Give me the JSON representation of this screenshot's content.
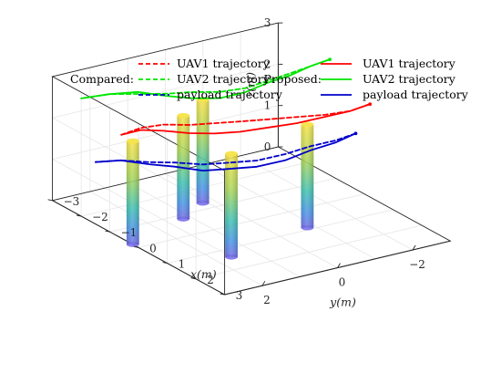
{
  "chart_data": {
    "type": "line3d",
    "axes": {
      "xlabel": "x(m)",
      "ylabel": "y(m)",
      "zlabel": "z(m)",
      "xlim": [
        -3,
        3
      ],
      "ylim": [
        -3,
        3
      ],
      "zlim": [
        0,
        3
      ],
      "xticks": [
        -3,
        -2,
        -1,
        0,
        1,
        2,
        3
      ],
      "yticks": [
        -2,
        0,
        2
      ],
      "zticks": [
        0,
        1,
        2,
        3
      ],
      "grid": true
    },
    "legend": {
      "placement": "top",
      "groups": [
        {
          "label": "Compared:",
          "entries": [
            "UAV1 trajectory",
            "UAV2 trajectory",
            "payload trajectory"
          ],
          "style": "dashed"
        },
        {
          "label": "Proposed:",
          "entries": [
            "UAV1 trajectory",
            "UAV2 trajectory",
            "payload trajectory"
          ],
          "style": "solid"
        }
      ]
    },
    "colors": {
      "UAV1": "#ff0000",
      "UAV2": "#00e600",
      "payload": "#0000cc"
    },
    "obstacles": [
      {
        "x": -1.3,
        "y": 0.3,
        "radius": 0.15,
        "height": 2.5
      },
      {
        "x": -0.8,
        "y": 1.2,
        "radius": 0.15,
        "height": 2.5
      },
      {
        "x": 0.9,
        "y": -0.8,
        "radius": 0.15,
        "height": 2.5
      },
      {
        "x": -0.2,
        "y": 3.0,
        "radius": 0.15,
        "height": 2.5
      },
      {
        "x": 1.4,
        "y": 1.6,
        "radius": 0.15,
        "height": 2.5
      }
    ],
    "series": [
      {
        "name": "UAV1 trajectory",
        "group": "Proposed",
        "style": "solid",
        "color": "#ff0000",
        "x": [
          0.2,
          0.3,
          0.2,
          0.0,
          -0.2,
          -0.4,
          -0.5,
          -0.6,
          -0.7,
          -0.7,
          -0.6
        ],
        "y": [
          -3.0,
          -2.4,
          -1.8,
          -1.2,
          -0.6,
          0.0,
          0.6,
          1.2,
          1.8,
          2.4,
          3.0
        ],
        "z": [
          2.25,
          2.25,
          2.2,
          2.1,
          2.05,
          2.0,
          2.05,
          2.15,
          2.3,
          2.45,
          2.5
        ]
      },
      {
        "name": "UAV1 trajectory",
        "group": "Compared",
        "style": "dashed",
        "color": "#ff0000",
        "x": [
          0.2,
          0.3,
          0.2,
          0.0,
          -0.2,
          -0.4,
          -0.5,
          -0.6,
          -0.7,
          -0.7,
          -0.6
        ],
        "y": [
          -3.0,
          -2.4,
          -1.8,
          -1.2,
          -0.6,
          0.0,
          0.6,
          1.2,
          1.8,
          2.4,
          3.0
        ],
        "z": [
          2.25,
          2.25,
          2.25,
          2.25,
          2.25,
          2.25,
          2.3,
          2.35,
          2.45,
          2.5,
          2.5
        ]
      },
      {
        "name": "UAV2 trajectory",
        "group": "Proposed",
        "style": "solid",
        "color": "#00e600",
        "x": [
          -1.2,
          -1.1,
          -1.0,
          -1.0,
          -1.0,
          -1.1,
          -1.3,
          -1.4,
          -1.6,
          -1.8,
          -2.0
        ],
        "y": [
          -3.0,
          -2.4,
          -1.8,
          -1.2,
          -0.6,
          0.0,
          0.6,
          1.2,
          1.8,
          2.4,
          3.0
        ],
        "z": [
          2.8,
          2.8,
          2.75,
          2.7,
          2.6,
          2.55,
          2.6,
          2.75,
          2.9,
          2.9,
          2.85
        ]
      },
      {
        "name": "UAV2 trajectory",
        "group": "Compared",
        "style": "dashed",
        "color": "#00e600",
        "x": [
          -1.2,
          -1.1,
          -1.0,
          -1.0,
          -1.0,
          -1.1,
          -1.3,
          -1.4,
          -1.6,
          -1.8,
          -2.0
        ],
        "y": [
          -3.0,
          -2.4,
          -1.8,
          -1.2,
          -0.6,
          0.0,
          0.6,
          1.2,
          1.8,
          2.4,
          3.0
        ],
        "z": [
          2.8,
          2.8,
          2.8,
          2.75,
          2.7,
          2.7,
          2.75,
          2.8,
          2.85,
          2.9,
          2.85
        ]
      },
      {
        "name": "payload trajectory",
        "group": "Proposed",
        "style": "solid",
        "color": "#0000cc",
        "x": [
          -0.3,
          -0.2,
          -0.3,
          -0.4,
          -0.6,
          -0.8,
          -0.9,
          -1.1,
          -1.2,
          -1.4,
          -1.5
        ],
        "y": [
          -3.0,
          -2.4,
          -1.8,
          -1.2,
          -0.6,
          0.0,
          0.6,
          1.2,
          1.8,
          2.4,
          3.0
        ],
        "z": [
          1.35,
          1.3,
          1.2,
          1.05,
          0.95,
          0.95,
          1.0,
          1.15,
          1.3,
          1.45,
          1.5
        ]
      },
      {
        "name": "payload trajectory",
        "group": "Compared",
        "style": "dashed",
        "color": "#0000cc",
        "x": [
          -0.3,
          -0.2,
          -0.3,
          -0.4,
          -0.6,
          -0.8,
          -0.9,
          -1.1,
          -1.2,
          -1.4,
          -1.5
        ],
        "y": [
          -3.0,
          -2.4,
          -1.8,
          -1.2,
          -0.6,
          0.0,
          0.6,
          1.2,
          1.8,
          2.4,
          3.0
        ],
        "z": [
          1.35,
          1.35,
          1.3,
          1.2,
          1.1,
          1.1,
          1.15,
          1.25,
          1.35,
          1.45,
          1.5
        ]
      }
    ]
  }
}
